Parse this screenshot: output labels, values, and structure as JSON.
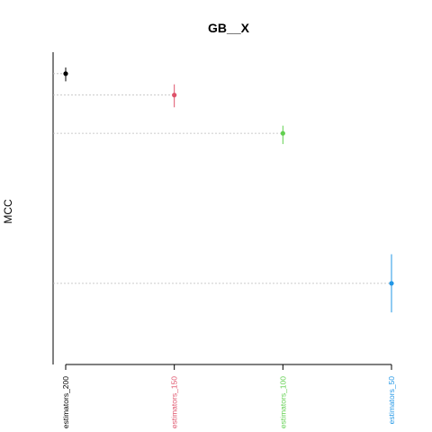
{
  "chart_data": {
    "type": "scatter",
    "title": "GB__X",
    "xlabel": "",
    "ylabel": "MCC",
    "categories": [
      "estimators_200",
      "estimators_150",
      "estimators_100",
      "estimators_50"
    ],
    "values": [
      0.95,
      0.88,
      0.755,
      0.265
    ],
    "error_low": [
      0.925,
      0.84,
      0.72,
      0.17
    ],
    "error_high": [
      0.97,
      0.915,
      0.78,
      0.36
    ],
    "colors": [
      "#000000",
      "#df536b",
      "#61d04f",
      "#2297e6"
    ],
    "ylim": [
      0.0,
      1.02
    ],
    "grid": "dotted reference lines from the axis to each point",
    "legend": "none"
  }
}
